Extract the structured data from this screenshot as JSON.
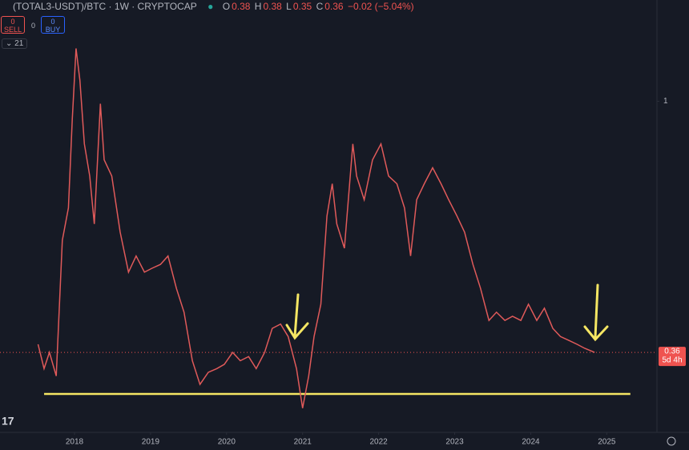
{
  "header": {
    "symbol": "(TOTAL3-USDT)/BTC · 1W · CRYPTOCAP",
    "o_label": "O",
    "o": "0.38",
    "h_label": "H",
    "h": "0.38",
    "l_label": "L",
    "l": "0.35",
    "c_label": "C",
    "c": "0.36",
    "change": "−0.02 (−5.04%)",
    "sell_qty": "0",
    "sell": "SELL",
    "spread": "0",
    "buy_qty": "0",
    "buy": "BUY",
    "indicators": "21"
  },
  "chart_data": {
    "type": "line",
    "log_y": true,
    "x": [
      2017.52,
      2017.6,
      2017.67,
      2017.76,
      2017.84,
      2017.92,
      2017.97,
      2018.02,
      2018.07,
      2018.13,
      2018.2,
      2018.26,
      2018.34,
      2018.39,
      2018.49,
      2018.6,
      2018.71,
      2018.81,
      2018.92,
      2019.02,
      2019.13,
      2019.23,
      2019.34,
      2019.44,
      2019.55,
      2019.65,
      2019.76,
      2019.87,
      2019.97,
      2020.08,
      2020.18,
      2020.29,
      2020.39,
      2020.5,
      2020.6,
      2020.71,
      2020.81,
      2020.92,
      2021.0,
      2021.08,
      2021.15,
      2021.24,
      2021.32,
      2021.39,
      2021.45,
      2021.55,
      2021.66,
      2021.71,
      2021.81,
      2021.92,
      2022.03,
      2022.13,
      2022.24,
      2022.34,
      2022.42,
      2022.5,
      2022.6,
      2022.71,
      2022.82,
      2022.92,
      2023.03,
      2023.13,
      2023.24,
      2023.34,
      2023.45,
      2023.55,
      2023.66,
      2023.76,
      2023.87,
      2023.97,
      2024.08,
      2024.18,
      2024.29,
      2024.39,
      2024.5,
      2024.61,
      2024.71,
      2024.84
    ],
    "series": [
      {
        "color": "#e05a5a",
        "values": [
          0.372,
          0.337,
          0.36,
          0.327,
          0.568,
          0.648,
          0.928,
          1.24,
          1.09,
          0.841,
          0.738,
          0.607,
          0.99,
          0.788,
          0.738,
          0.587,
          0.499,
          0.533,
          0.499,
          0.507,
          0.515,
          0.533,
          0.467,
          0.424,
          0.348,
          0.316,
          0.332,
          0.337,
          0.343,
          0.36,
          0.348,
          0.354,
          0.337,
          0.36,
          0.397,
          0.404,
          0.384,
          0.337,
          0.287,
          0.327,
          0.384,
          0.438,
          0.627,
          0.715,
          0.607,
          0.55,
          0.841,
          0.738,
          0.67,
          0.788,
          0.841,
          0.738,
          0.715,
          0.648,
          0.533,
          0.67,
          0.715,
          0.763,
          0.715,
          0.67,
          0.627,
          0.587,
          0.515,
          0.467,
          0.41,
          0.424,
          0.41,
          0.417,
          0.41,
          0.438,
          0.41,
          0.431,
          0.397,
          0.384,
          0.378,
          0.372,
          0.366,
          0.36
        ]
      }
    ],
    "xlim": [
      2017.02,
      2025.66
    ],
    "xticks": [
      2018,
      2019,
      2020,
      2021,
      2022,
      2023,
      2024,
      2025
    ],
    "ylim": [
      0.26,
      1.51
    ],
    "yticks": [
      1
    ],
    "support_level": {
      "value": 0.304,
      "x": [
        2017.6,
        2025.31
      ],
      "color": "#f5e663"
    },
    "last_price": 0.36,
    "countdown": "5d 4h"
  }
}
